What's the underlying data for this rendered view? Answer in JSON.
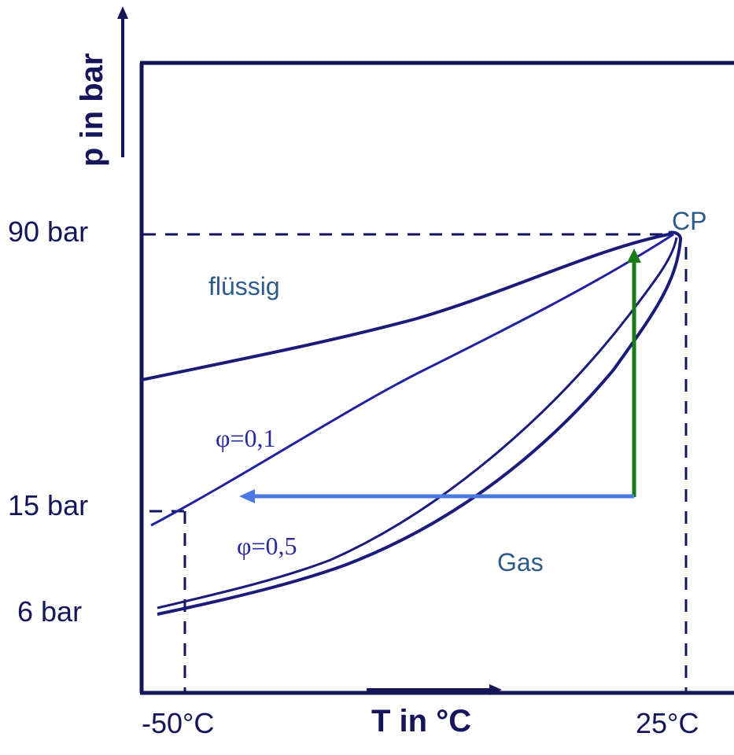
{
  "axes": {
    "y_label": "p  in bar",
    "x_label": "T in °C"
  },
  "ticks": {
    "p_90": "90 bar",
    "p_15": "15 bar",
    "p_6": "6 bar",
    "t_minus50": "-50°C",
    "t_25": "25°C"
  },
  "labels": {
    "critical_point": "CP",
    "liquid": "flüssig",
    "gas": "Gas",
    "phi_01": "φ=0,1",
    "phi_05": "φ=0,5"
  },
  "colors": {
    "frame": "#15155a",
    "curves": "#1b1b7a",
    "isoquality": "#2222a0",
    "green_arrow": "#1a7a1a",
    "blue_arrow": "#4a78e0",
    "region_text": "#2d5a8a"
  }
}
